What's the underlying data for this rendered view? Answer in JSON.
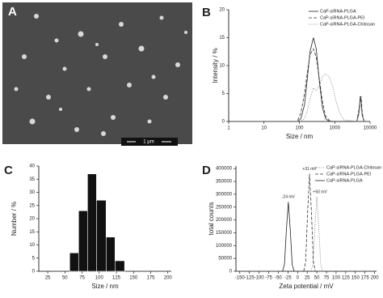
{
  "image_panel": {
    "label": "A",
    "scale_bar": "1 µm"
  },
  "chart_data": [
    {
      "type": "line",
      "panel_label": "B",
      "xlabel": "Size / nm",
      "ylabel": "Intensity / %",
      "xscale": "log",
      "xlim": [
        1,
        10000
      ],
      "xticks": [
        1,
        10,
        100,
        1000,
        10000
      ],
      "ylim": [
        0,
        20
      ],
      "yticks": [
        0,
        5,
        10,
        15,
        20
      ],
      "legend": "top-right",
      "x": [
        90,
        110,
        140,
        170,
        200,
        250,
        300,
        370,
        450,
        550,
        700,
        900,
        1100,
        1400,
        1800,
        4200,
        4800,
        5300,
        5600,
        6000,
        6800
      ],
      "series": [
        {
          "name": "CaP-siRNA-PLGA",
          "color": "#222222",
          "style": "solid",
          "values": [
            0,
            0.5,
            3,
            8,
            12.5,
            15,
            13,
            7,
            2.5,
            0.5,
            0,
            0,
            0,
            0,
            0,
            0,
            1.5,
            4.5,
            3.5,
            1,
            0
          ]
        },
        {
          "name": "CaP-siRNA-PLGA-PEI",
          "color": "#333333",
          "style": "dashed",
          "values": [
            0.2,
            1.5,
            5,
            9,
            12,
            13,
            11.5,
            7.5,
            3.5,
            1,
            0.2,
            0,
            0,
            0,
            0,
            0,
            2,
            4,
            4.5,
            1.5,
            0
          ]
        },
        {
          "name": "CaP-siRNA-PLGA-Chitosan",
          "color": "#777777",
          "style": "dotted",
          "values": [
            0,
            0,
            0.5,
            2,
            4,
            6,
            5.5,
            6.5,
            8,
            8.5,
            8,
            6,
            3.5,
            1.5,
            0.3,
            0,
            1,
            3,
            2.5,
            1,
            0
          ]
        }
      ]
    },
    {
      "type": "histogram",
      "panel_label": "C",
      "xlabel": "Size / nm",
      "ylabel": "Number / %",
      "xlim": [
        12,
        205
      ],
      "xticks": [
        25,
        50,
        75,
        100,
        125,
        150,
        175,
        200
      ],
      "ylim": [
        0,
        40
      ],
      "yticks": [
        0,
        5,
        10,
        15,
        20,
        25,
        30,
        35,
        40
      ],
      "bins": [
        57,
        70,
        83,
        96,
        110,
        123,
        137
      ],
      "values": [
        7,
        23,
        37,
        27,
        13,
        4
      ],
      "color": "#111111"
    },
    {
      "type": "line",
      "panel_label": "D",
      "xlabel": "Zeta potential / mV",
      "ylabel": "total counts",
      "xlim": [
        -160,
        205
      ],
      "xticks": [
        -150,
        -125,
        -100,
        -75,
        -50,
        -25,
        0,
        25,
        50,
        75,
        100,
        125,
        150,
        175,
        200
      ],
      "ylim": [
        0,
        410000
      ],
      "yticks": [
        0,
        50000,
        100000,
        150000,
        200000,
        250000,
        300000,
        350000,
        400000
      ],
      "legend": "top-right",
      "series": [
        {
          "name": "CaP-siRNA-PLGA-Chitosan",
          "color": "#777777",
          "style": "dotted",
          "annotation": "+50 mV",
          "x": [
            35,
            40,
            45,
            50,
            55,
            60,
            65
          ],
          "values": [
            0,
            29000,
            174000,
            290000,
            174000,
            29000,
            0
          ]
        },
        {
          "name": "CaP-siRNA-PLGA-PEI",
          "color": "#333333",
          "style": "dashed",
          "annotation": "+31 mV",
          "x": [
            16,
            21,
            26,
            31,
            36,
            41,
            46
          ],
          "values": [
            0,
            38000,
            228000,
            380000,
            228000,
            38000,
            0
          ]
        },
        {
          "name": "CaP-siRNA-PLGA",
          "color": "#222222",
          "style": "solid",
          "annotation": "-24 mV",
          "x": [
            -39,
            -34,
            -29,
            -24,
            -19,
            -14,
            -9
          ],
          "values": [
            0,
            27000,
            162000,
            270000,
            162000,
            27000,
            0
          ]
        }
      ]
    }
  ]
}
